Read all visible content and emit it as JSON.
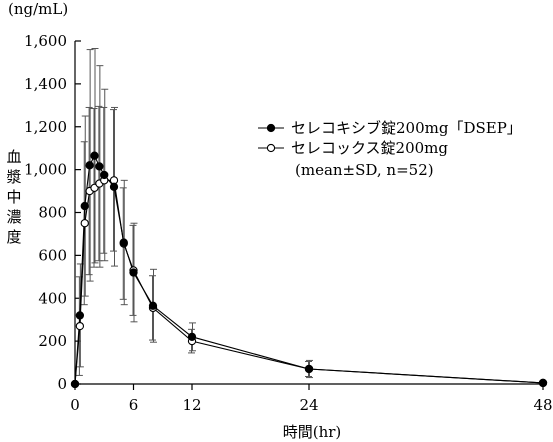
{
  "chart_data": {
    "type": "line",
    "y_unit_label": "(ng/mL)",
    "ylabel": "血漿中濃度",
    "xlabel": "時間(hr)",
    "xlim": [
      0,
      48
    ],
    "ylim": [
      0,
      1600
    ],
    "x_ticks": [
      0,
      6,
      12,
      24,
      48
    ],
    "y_ticks": [
      0,
      200,
      400,
      600,
      800,
      1000,
      1200,
      1400,
      1600
    ],
    "y_tick_labels": [
      "0",
      "200",
      "400",
      "600",
      "800",
      "1,000",
      "1,200",
      "1,400",
      "1,600"
    ],
    "legend_position": "right",
    "legend_note": "(mean±SD, n=52)",
    "grid": false,
    "series": [
      {
        "name": "セレコキシブ錠200mg「DSEP」",
        "marker": "filled-circle",
        "x": [
          0,
          0.5,
          1,
          1.5,
          2,
          2.5,
          3,
          4,
          5,
          6,
          8,
          12,
          24,
          48
        ],
        "y": [
          0,
          320,
          830,
          1020,
          1065,
          1015,
          975,
          920,
          660,
          520,
          365,
          220,
          70,
          5
        ],
        "sd": [
          0,
          240,
          420,
          540,
          500,
          470,
          400,
          370,
          290,
          230,
          170,
          65,
          40,
          0
        ]
      },
      {
        "name": "セレコックス錠200mg",
        "marker": "open-circle",
        "x": [
          0,
          0.5,
          1,
          1.5,
          2,
          2.5,
          3,
          4,
          5,
          6,
          8,
          12,
          24,
          48
        ],
        "y": [
          0,
          270,
          750,
          900,
          915,
          935,
          950,
          950,
          655,
          530,
          355,
          200,
          70,
          5
        ],
        "sd": [
          0,
          230,
          380,
          390,
          370,
          360,
          340,
          330,
          260,
          210,
          150,
          55,
          35,
          0
        ]
      }
    ]
  }
}
